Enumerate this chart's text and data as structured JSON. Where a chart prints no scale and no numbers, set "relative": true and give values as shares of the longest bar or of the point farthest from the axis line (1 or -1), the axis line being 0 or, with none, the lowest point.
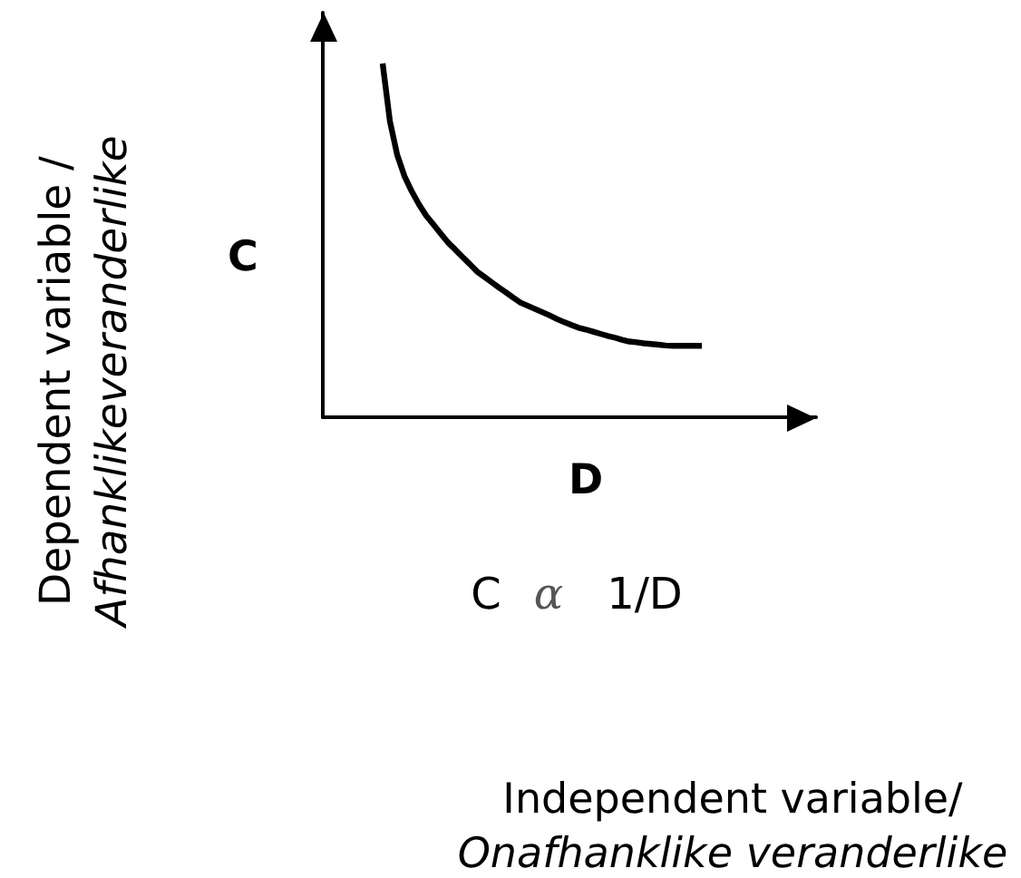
{
  "chart_data": {
    "type": "line",
    "relative": true,
    "xlabel": "D",
    "ylabel": "C",
    "marker": "none",
    "color": "#000000",
    "categories": [
      null,
      null,
      null,
      null,
      null,
      null,
      null,
      null,
      null,
      null,
      null,
      null,
      null,
      null,
      null,
      null,
      null,
      null,
      null,
      null,
      null,
      null,
      null,
      null,
      null,
      null,
      null,
      null,
      null,
      null,
      null,
      null,
      null,
      null,
      null,
      null,
      null,
      null,
      null,
      null,
      null,
      null,
      null,
      null,
      null
    ],
    "values": [
      1,
      0.837,
      0.742,
      0.682,
      0.639,
      0.602,
      0.57,
      0.545,
      0.519,
      0.494,
      0.474,
      0.453,
      0.433,
      0.412,
      0.397,
      0.382,
      0.367,
      0.353,
      0.338,
      0.324,
      0.315,
      0.306,
      0.297,
      0.288,
      0.278,
      0.269,
      0.261,
      0.253,
      0.248,
      0.242,
      0.236,
      0.23,
      0.225,
      0.219,
      0.214,
      0.212,
      0.209,
      0.207,
      0.205,
      0.203,
      0.202,
      0.202,
      0.202,
      0.202,
      0.202
    ],
    "annotations": [
      "Dependent variable /\nAfhanklikeveranderlike",
      "C α 1/D",
      "Independent variable/\nOnafhanklike veranderlike"
    ]
  }
}
